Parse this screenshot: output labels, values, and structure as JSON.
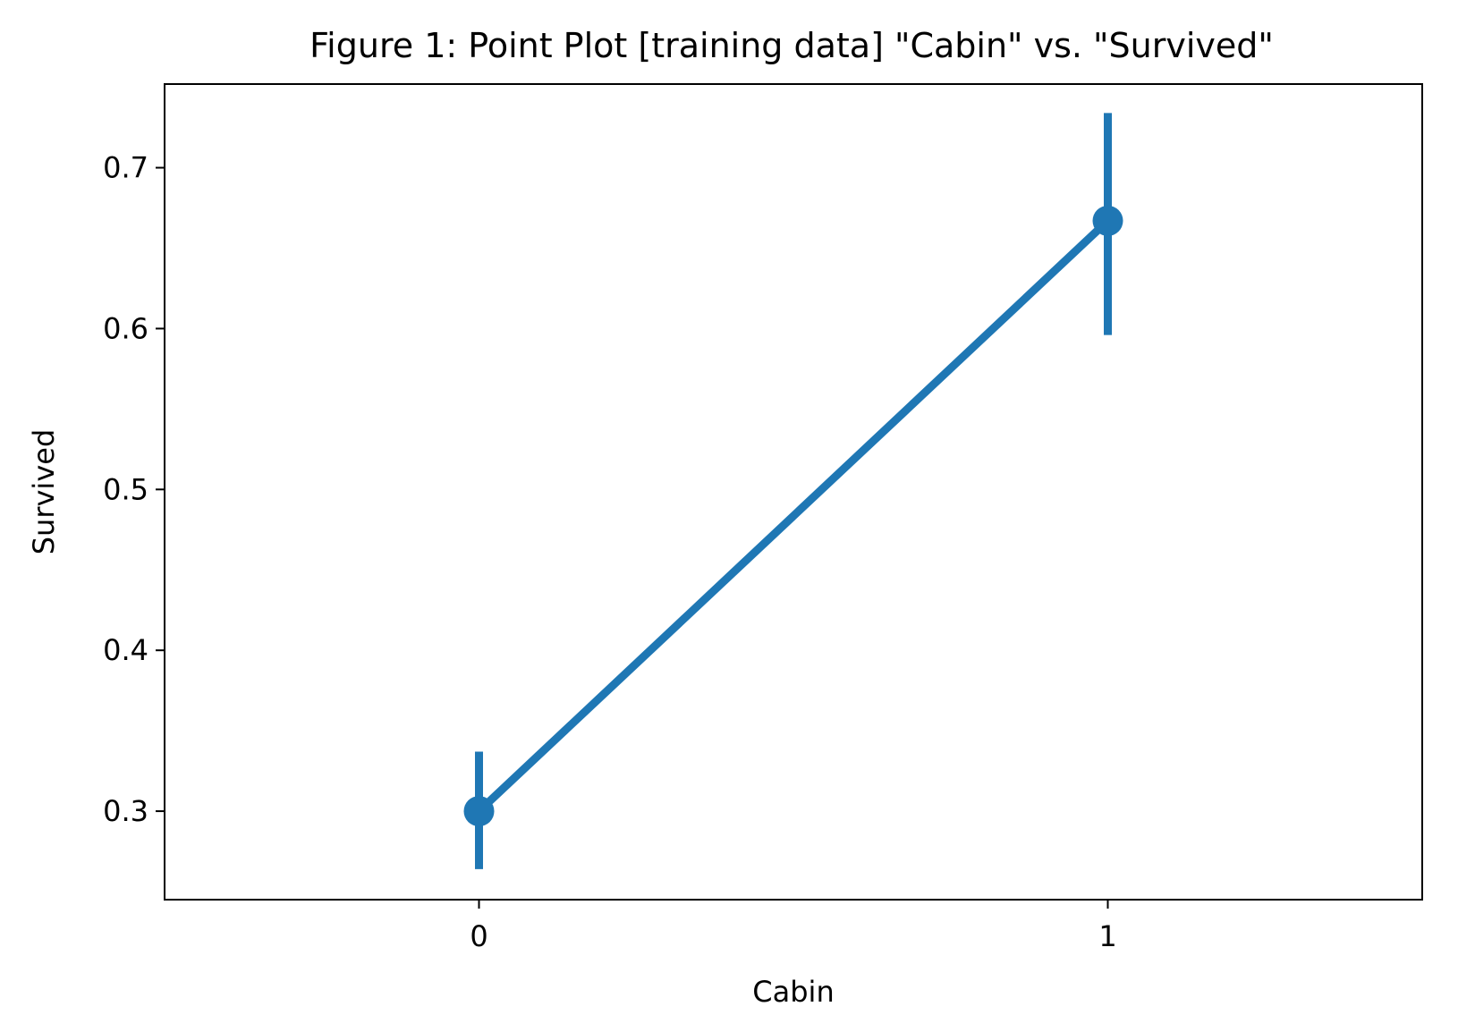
{
  "chart_data": {
    "type": "line",
    "title": "Figure 1:  Point Plot [training data] \"Cabin\" vs. \"Survived\"",
    "xlabel": "Cabin",
    "ylabel": "Survived",
    "categories": [
      "0",
      "1"
    ],
    "ylim": [
      0.245,
      0.752
    ],
    "yticks": [
      "0.3",
      "0.4",
      "0.5",
      "0.6",
      "0.7"
    ],
    "grid": false,
    "color": "#1f77b4",
    "series": [
      {
        "values": [
          0.3,
          0.667
        ],
        "ci_low": [
          0.264,
          0.596
        ],
        "ci_high": [
          0.337,
          0.734
        ]
      }
    ]
  }
}
